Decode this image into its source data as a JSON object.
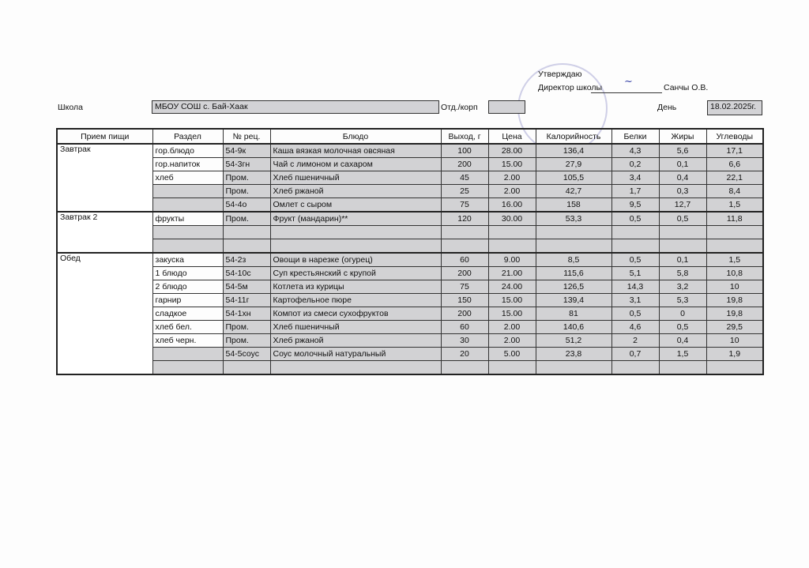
{
  "approval": {
    "approve": "Утверждаю",
    "director_label": "Директор школы",
    "director_name": "Санчы О.В."
  },
  "header": {
    "school_label": "Школа",
    "school_value": "МБОУ СОШ с. Бай-Хаак",
    "dept_label": "Отд./корп",
    "dept_value": "",
    "day_label": "День",
    "day_value": "18.02.2025г."
  },
  "columns": [
    "Прием пищи",
    "Раздел",
    "№ рец.",
    "Блюдо",
    "Выход, г",
    "Цена",
    "Калорийность",
    "Белки",
    "Жиры",
    "Углеводы"
  ],
  "meals": [
    {
      "name": "Завтрак",
      "rows": [
        [
          "гор.блюдо",
          "54-9к",
          "Каша вязкая молочная овсяная",
          "100",
          "28.00",
          "136,4",
          "4,3",
          "5,6",
          "17,1"
        ],
        [
          "гор.напиток",
          "54-3гн",
          "Чай с лимоном и сахаром",
          "200",
          "15.00",
          "27,9",
          "0,2",
          "0,1",
          "6,6"
        ],
        [
          "хлеб",
          "Пром.",
          "Хлеб пшеничный",
          "45",
          "2.00",
          "105,5",
          "3,4",
          "0,4",
          "22,1"
        ],
        [
          "",
          "Пром.",
          "Хлеб ржаной",
          "25",
          "2.00",
          "42,7",
          "1,7",
          "0,3",
          "8,4"
        ],
        [
          "",
          "54-4о",
          "Омлет с сыром",
          "75",
          "16.00",
          "158",
          "9,5",
          "12,7",
          "1,5"
        ]
      ]
    },
    {
      "name": "Завтрак 2",
      "rows": [
        [
          "фрукты",
          "Пром.",
          "Фрукт (мандарин)**",
          "120",
          "30.00",
          "53,3",
          "0,5",
          "0,5",
          "11,8"
        ],
        [
          "",
          "",
          "",
          "",
          "",
          "",
          "",
          "",
          ""
        ],
        [
          "",
          "",
          "",
          "",
          "",
          "",
          "",
          "",
          ""
        ]
      ]
    },
    {
      "name": "Обед",
      "rows": [
        [
          "закуска",
          "54-2з",
          "Овощи в нарезке (огурец)",
          "60",
          "9.00",
          "8,5",
          "0,5",
          "0,1",
          "1,5"
        ],
        [
          "1 блюдо",
          "54-10с",
          "Суп крестьянский с крупой",
          "200",
          "21.00",
          "115,6",
          "5,1",
          "5,8",
          "10,8"
        ],
        [
          "2 блюдо",
          "54-5м",
          "Котлета из курицы",
          "75",
          "24.00",
          "126,5",
          "14,3",
          "3,2",
          "10"
        ],
        [
          "гарнир",
          "54-11г",
          "Картофельное пюре",
          "150",
          "15.00",
          "139,4",
          "3,1",
          "5,3",
          "19,8"
        ],
        [
          "сладкое",
          "54-1хн",
          "Компот из смеси сухофруктов",
          "200",
          "15.00",
          "81",
          "0,5",
          "0",
          "19,8"
        ],
        [
          "хлеб бел.",
          "Пром.",
          "Хлеб пшеничный",
          "60",
          "2.00",
          "140,6",
          "4,6",
          "0,5",
          "29,5"
        ],
        [
          "хлеб черн.",
          "Пром.",
          "Хлеб ржаной",
          "30",
          "2.00",
          "51,2",
          "2",
          "0,4",
          "10"
        ],
        [
          "",
          "54-5соус",
          "Соус молочный натуральный",
          "20",
          "5.00",
          "23,8",
          "0,7",
          "1,5",
          "1,9"
        ],
        [
          "",
          "",
          "",
          "",
          "",
          "",
          "",
          "",
          ""
        ]
      ]
    }
  ]
}
